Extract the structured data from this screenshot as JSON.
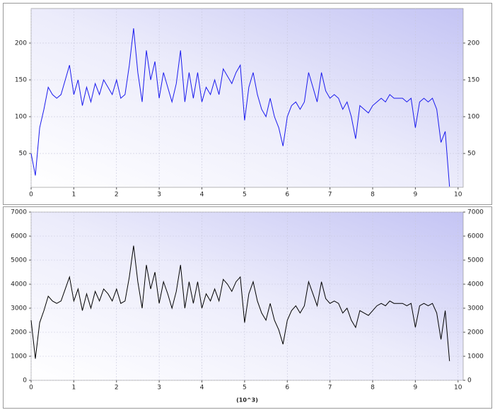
{
  "chart_data": [
    {
      "type": "line",
      "x": [
        0,
        0.1,
        0.2,
        0.3,
        0.4,
        0.5,
        0.6,
        0.7,
        0.8,
        0.9,
        1,
        1.1,
        1.2,
        1.3,
        1.4,
        1.5,
        1.6,
        1.7,
        1.8,
        1.9,
        2,
        2.1,
        2.2,
        2.3,
        2.4,
        2.5,
        2.6,
        2.7,
        2.8,
        2.9,
        3,
        3.1,
        3.2,
        3.3,
        3.4,
        3.5,
        3.6,
        3.7,
        3.8,
        3.9,
        4,
        4.1,
        4.2,
        4.3,
        4.4,
        4.5,
        4.6,
        4.7,
        4.8,
        4.9,
        5,
        5.1,
        5.2,
        5.3,
        5.4,
        5.5,
        5.6,
        5.7,
        5.8,
        5.9,
        6,
        6.1,
        6.2,
        6.3,
        6.4,
        6.5,
        6.6,
        6.7,
        6.8,
        6.9,
        7,
        7.1,
        7.2,
        7.3,
        7.4,
        7.5,
        7.6,
        7.7,
        7.8,
        7.9,
        8,
        8.1,
        8.2,
        8.3,
        8.4,
        8.5,
        8.6,
        8.7,
        8.8,
        8.9,
        9,
        9.1,
        9.2,
        9.3,
        9.4,
        9.5,
        9.6,
        9.7,
        9.8
      ],
      "series": [
        {
          "color": "#1a1aee",
          "values": [
            50,
            20,
            85,
            110,
            140,
            130,
            125,
            130,
            150,
            170,
            130,
            150,
            115,
            140,
            120,
            145,
            130,
            150,
            140,
            130,
            150,
            125,
            130,
            170,
            220,
            160,
            120,
            190,
            150,
            175,
            125,
            160,
            140,
            120,
            145,
            190,
            120,
            160,
            125,
            160,
            120,
            140,
            130,
            150,
            130,
            165,
            155,
            145,
            160,
            170,
            95,
            140,
            160,
            130,
            110,
            100,
            125,
            100,
            85,
            60,
            100,
            115,
            120,
            110,
            120,
            160,
            140,
            120,
            160,
            135,
            125,
            130,
            125,
            110,
            120,
            100,
            70,
            115,
            110,
            105,
            115,
            120,
            125,
            120,
            130,
            125,
            125,
            125,
            120,
            125,
            85,
            120,
            125,
            120,
            125,
            110,
            65,
            80,
            5
          ]
        }
      ],
      "xlim": [
        0,
        10.12
      ],
      "ylim": [
        4,
        247
      ],
      "xticks": [
        0,
        1,
        2,
        3,
        4,
        5,
        6,
        7,
        8,
        9,
        10
      ],
      "yticks": [
        50,
        100,
        150,
        200
      ],
      "grid": true
    },
    {
      "type": "line",
      "x": [
        0,
        0.1,
        0.2,
        0.3,
        0.4,
        0.5,
        0.6,
        0.7,
        0.8,
        0.9,
        1,
        1.1,
        1.2,
        1.3,
        1.4,
        1.5,
        1.6,
        1.7,
        1.8,
        1.9,
        2,
        2.1,
        2.2,
        2.3,
        2.4,
        2.5,
        2.6,
        2.7,
        2.8,
        2.9,
        3,
        3.1,
        3.2,
        3.3,
        3.4,
        3.5,
        3.6,
        3.7,
        3.8,
        3.9,
        4,
        4.1,
        4.2,
        4.3,
        4.4,
        4.5,
        4.6,
        4.7,
        4.8,
        4.9,
        5,
        5.1,
        5.2,
        5.3,
        5.4,
        5.5,
        5.6,
        5.7,
        5.8,
        5.9,
        6,
        6.1,
        6.2,
        6.3,
        6.4,
        6.5,
        6.6,
        6.7,
        6.8,
        6.9,
        7,
        7.1,
        7.2,
        7.3,
        7.4,
        7.5,
        7.6,
        7.7,
        7.8,
        7.9,
        8,
        8.1,
        8.2,
        8.3,
        8.4,
        8.5,
        8.6,
        8.7,
        8.8,
        8.9,
        9,
        9.1,
        9.2,
        9.3,
        9.4,
        9.5,
        9.6,
        9.7,
        9.8
      ],
      "series": [
        {
          "color": "#000000",
          "values": [
            2500,
            900,
            2400,
            2900,
            3500,
            3300,
            3200,
            3300,
            3800,
            4300,
            3300,
            3800,
            2900,
            3600,
            3000,
            3700,
            3300,
            3800,
            3600,
            3300,
            3800,
            3200,
            3300,
            4300,
            5600,
            4100,
            3000,
            4800,
            3800,
            4500,
            3200,
            4100,
            3600,
            3000,
            3700,
            4800,
            3000,
            4100,
            3200,
            4100,
            3000,
            3600,
            3300,
            3800,
            3300,
            4200,
            4000,
            3700,
            4100,
            4300,
            2400,
            3600,
            4100,
            3300,
            2800,
            2500,
            3200,
            2500,
            2100,
            1500,
            2500,
            2900,
            3100,
            2800,
            3100,
            4100,
            3600,
            3100,
            4100,
            3400,
            3200,
            3300,
            3200,
            2800,
            3000,
            2500,
            2200,
            2900,
            2800,
            2700,
            2900,
            3100,
            3200,
            3100,
            3300,
            3200,
            3200,
            3200,
            3100,
            3200,
            2200,
            3100,
            3200,
            3100,
            3200,
            2800,
            1700,
            2900,
            800
          ]
        }
      ],
      "x_label": "(10^3)",
      "xlim": [
        0,
        10.12
      ],
      "ylim": [
        0,
        7000
      ],
      "xticks": [
        0,
        1,
        2,
        3,
        4,
        5,
        6,
        7,
        8,
        9,
        10
      ],
      "yticks": [
        0,
        1000,
        2000,
        3000,
        4000,
        5000,
        6000,
        7000
      ],
      "grid": true
    }
  ]
}
